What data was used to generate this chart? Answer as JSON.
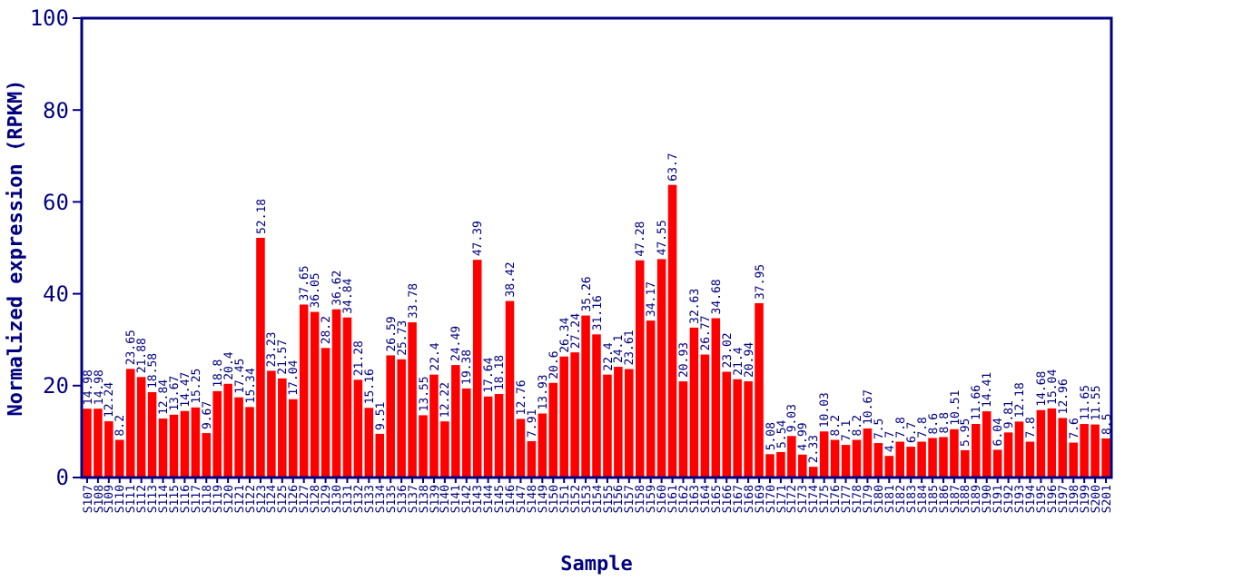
{
  "chart_data": {
    "type": "bar",
    "xlabel": "Sample",
    "ylabel": "Normalized expression (RPKM)",
    "categories": [
      "S107",
      "S108",
      "S109",
      "S110",
      "S111",
      "S112",
      "S113",
      "S114",
      "S115",
      "S116",
      "S117",
      "S118",
      "S119",
      "S120",
      "S121",
      "S122",
      "S123",
      "S124",
      "S125",
      "S126",
      "S127",
      "S128",
      "S129",
      "S130",
      "S131",
      "S132",
      "S133",
      "S134",
      "S135",
      "S136",
      "S137",
      "S138",
      "S139",
      "S140",
      "S141",
      "S142",
      "S143",
      "S144",
      "S145",
      "S146",
      "S147",
      "S148",
      "S149",
      "S150",
      "S151",
      "S152",
      "S153",
      "S154",
      "S155",
      "S156",
      "S157",
      "S158",
      "S159",
      "S160",
      "S161",
      "S162",
      "S163",
      "S164",
      "S165",
      "S166",
      "S167",
      "S168",
      "S169",
      "S170",
      "S171",
      "S172",
      "S173",
      "S174",
      "S175",
      "S176",
      "S177",
      "S178",
      "S179",
      "S180",
      "S181",
      "S182",
      "S183",
      "S184",
      "S185",
      "S186",
      "S187",
      "S188",
      "S189",
      "S190",
      "S191",
      "S192",
      "S193",
      "S194",
      "S195",
      "S196",
      "S197",
      "S198",
      "S199",
      "S200",
      "S201"
    ],
    "values": [
      14.98,
      14.98,
      12.24,
      8.2,
      23.65,
      21.88,
      18.58,
      12.84,
      13.67,
      14.47,
      15.25,
      9.67,
      18.8,
      20.4,
      17.45,
      15.34,
      52.18,
      23.23,
      21.57,
      17.04,
      37.65,
      36.05,
      28.2,
      36.62,
      34.84,
      21.28,
      15.16,
      9.51,
      26.59,
      25.73,
      33.78,
      13.55,
      22.4,
      12.22,
      24.49,
      19.38,
      47.39,
      17.64,
      18.18,
      38.42,
      12.76,
      7.91,
      13.93,
      20.6,
      26.34,
      27.24,
      35.26,
      31.16,
      22.4,
      24.1,
      23.61,
      47.28,
      34.17,
      47.55,
      63.7,
      20.93,
      32.63,
      26.77,
      34.68,
      23.02,
      21.4,
      20.94,
      37.95,
      5.08,
      5.54,
      9.03,
      4.99,
      2.33,
      10.03,
      8.2,
      7.1,
      8.2,
      10.67,
      7.5,
      4.7,
      7.8,
      6.7,
      7.8,
      8.6,
      8.8,
      10.51,
      5.95,
      11.66,
      14.41,
      6.04,
      9.81,
      12.18,
      7.8,
      14.68,
      15.04,
      12.96,
      7.6,
      11.65,
      11.55,
      8.5
    ],
    "color": "#ff0000",
    "ylim": [
      0,
      100
    ],
    "yticks": [
      0,
      20,
      40,
      60,
      80,
      100
    ],
    "data_labels": true,
    "grid": false
  }
}
